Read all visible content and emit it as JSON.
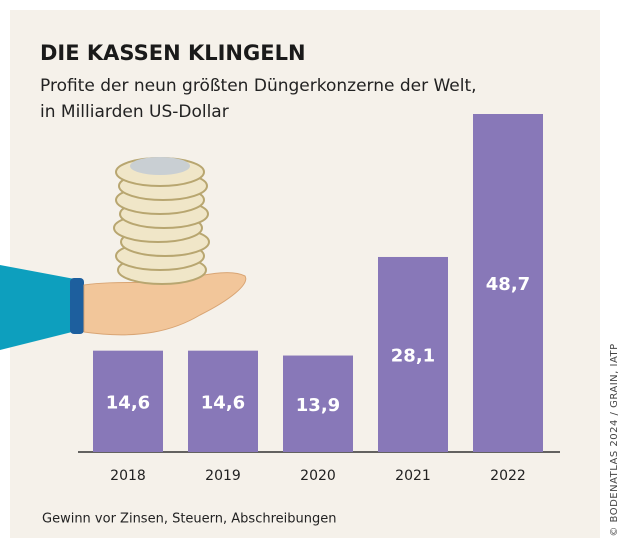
{
  "chart_data": {
    "type": "bar",
    "title": "DIE KASSEN KLINGELN",
    "subtitle": [
      "Profite der neun größten Düngerkonzerne der Welt,",
      "in Milliarden US-Dollar"
    ],
    "categories": [
      "2018",
      "2019",
      "2020",
      "2021",
      "2022"
    ],
    "values": [
      14.6,
      14.6,
      13.9,
      28.1,
      48.7
    ],
    "value_labels": [
      "14,6",
      "14,6",
      "13,9",
      "28,1",
      "48,7"
    ],
    "color": "#8878b8",
    "note": "Gewinn vor Zinsen, Steuern, Abschreibungen",
    "source": "© BODENATLAS 2024 / GRAIN, IATP"
  }
}
